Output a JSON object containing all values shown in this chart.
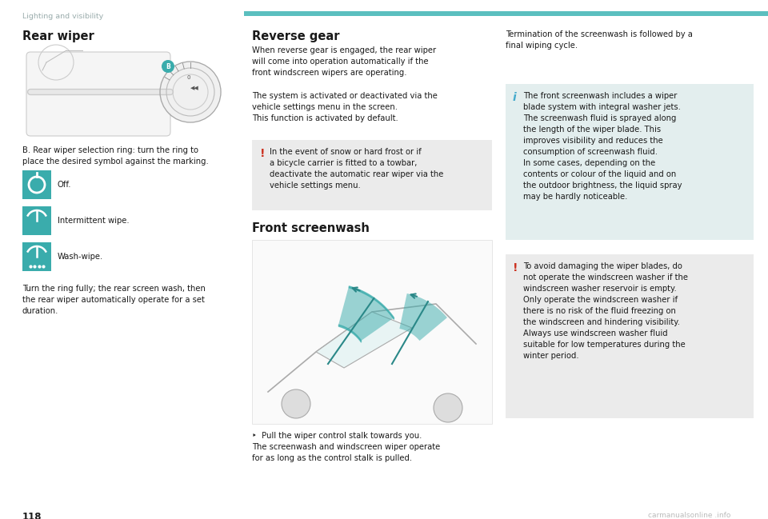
{
  "page_bg": "#ffffff",
  "header_line_color": "#7ececa",
  "header_text": "Lighting and visibility",
  "header_text_color": "#9aacac",
  "page_number": "118",
  "watermark_text": "carmanualsonline .info",
  "watermark_color": "#bbbbbb",
  "section1_title": "Rear wiper",
  "section2_title": "Reverse gear",
  "section3_title": "Front screenwash",
  "s1_desc": "B. Rear wiper selection ring: turn the ring to\nplace the desired symbol against the marking.",
  "s1_icon1": "Off.",
  "s1_icon2": "Intermittent wipe.",
  "s1_icon3": "Wash-wipe.",
  "s1_body2": "Turn the ring fully; the rear screen wash, then\nthe rear wiper automatically operate for a set\nduration.",
  "s2_body1": "When reverse gear is engaged, the rear wiper\nwill come into operation automatically if the\nfront windscreen wipers are operating.",
  "s2_body2": "The system is activated or deactivated via the\nvehicle settings menu in the screen.\nThis function is activated by default.",
  "warn1_text": "In the event of snow or hard frost or if\na bicycle carrier is fitted to a towbar,\ndeactivate the automatic rear wiper via the\nvehicle settings menu.",
  "s3_body": "‣  Pull the wiper control stalk towards you.\nThe screenwash and windscreen wiper operate\nfor as long as the control stalk is pulled.",
  "col3_top": "Termination of the screenwash is followed by a\nfinal wiping cycle.",
  "info_text": "The front screenwash includes a wiper\nblade system with integral washer jets.\nThe screenwash fluid is sprayed along\nthe length of the wiper blade. This\nimproves visibility and reduces the\nconsumption of screenwash fluid.\nIn some cases, depending on the\ncontents or colour of the liquid and on\nthe outdoor brightness, the liquid spray\nmay be hardly noticeable.",
  "warn2_text": "To avoid damaging the wiper blades, do\nnot operate the windscreen washer if the\nwindscreen washer reservoir is empty.\nOnly operate the windscreen washer if\nthere is no risk of the fluid freezing on\nthe windscreen and hindering visibility.\nAlways use windscreen washer fluid\nsuitable for low temperatures during the\nwinter period.",
  "teal": "#5bbfbf",
  "icon_teal": "#3aacac",
  "red_warn": "#cc3322",
  "blue_info": "#44aacc",
  "warn_bg": "#ebebeb",
  "info_bg": "#e3eeee",
  "text_dark": "#1a1a1a",
  "text_grey": "#9aacac",
  "fs_title": 10.5,
  "fs_body": 7.2,
  "fs_header": 6.8,
  "fs_page": 8.5
}
